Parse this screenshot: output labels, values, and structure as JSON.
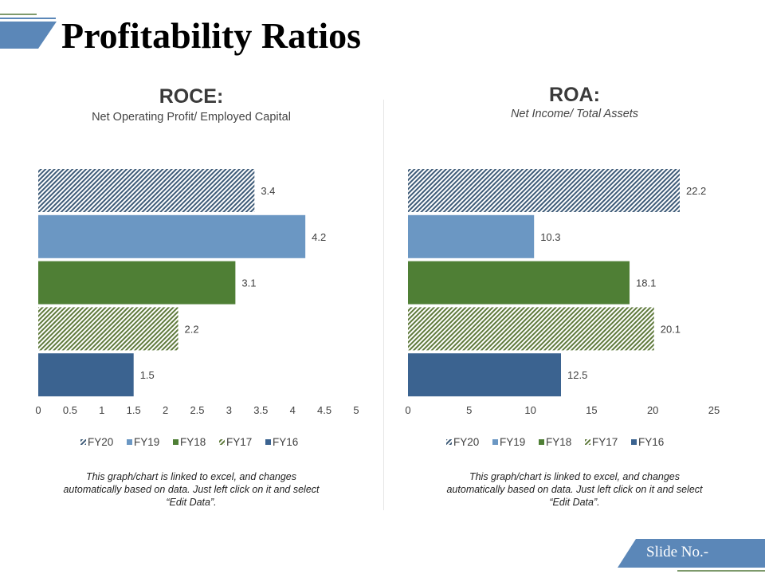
{
  "page": {
    "title": "Profitability Ratios",
    "slide_label": "Slide No.-"
  },
  "colors": {
    "FY20": "#3e5b78",
    "FY19": "#6b97c3",
    "FY18": "#4f7f35",
    "FY17": "#5f7a3c",
    "FY16": "#3b6390",
    "accent": "#5b87b8",
    "divider": "#e6e6e6"
  },
  "charts": {
    "roce": {
      "heading": "ROCE:",
      "subtitle": "Net Operating Profit/ Employed Capital",
      "note_lines": [
        "This graph/chart is linked to excel, and changes",
        "automatically based on data. Just left click on it and select",
        "“Edit Data”."
      ]
    },
    "roa": {
      "heading": "ROA:",
      "subtitle": "Net Income/ Total Assets",
      "note_lines": [
        "This graph/chart is linked to excel, and changes",
        "automatically based on data. Just left click on it and select",
        "“Edit Data”."
      ]
    }
  },
  "chart_data": [
    {
      "type": "bar",
      "orientation": "horizontal",
      "title": "ROCE:",
      "subtitle": "Net Operating Profit/ Employed Capital",
      "categories": [
        "FY20",
        "FY19",
        "FY18",
        "FY17",
        "FY16"
      ],
      "values": [
        3.4,
        4.2,
        3.1,
        2.2,
        1.5
      ],
      "patterns": [
        "hatched",
        "solid",
        "solid",
        "hatched",
        "solid"
      ],
      "xlim": [
        0,
        5
      ],
      "xticks": [
        "0",
        "0.5",
        "1",
        "1.5",
        "2",
        "2.5",
        "3",
        "3.5",
        "4",
        "4.5",
        "5"
      ],
      "legend": [
        "FY20",
        "FY19",
        "FY18",
        "FY17",
        "FY16"
      ],
      "legend_position": "bottom",
      "grid": false
    },
    {
      "type": "bar",
      "orientation": "horizontal",
      "title": "ROA:",
      "subtitle": "Net Income/ Total Assets",
      "categories": [
        "FY20",
        "FY19",
        "FY18",
        "FY17",
        "FY16"
      ],
      "values": [
        22.2,
        10.3,
        18.1,
        20.1,
        12.5
      ],
      "patterns": [
        "hatched",
        "solid",
        "solid",
        "hatched",
        "solid"
      ],
      "xlim": [
        0,
        25
      ],
      "xticks": [
        "0",
        "5",
        "10",
        "15",
        "20",
        "25"
      ],
      "legend": [
        "FY20",
        "FY19",
        "FY18",
        "FY17",
        "FY16"
      ],
      "legend_position": "bottom",
      "grid": false
    }
  ]
}
